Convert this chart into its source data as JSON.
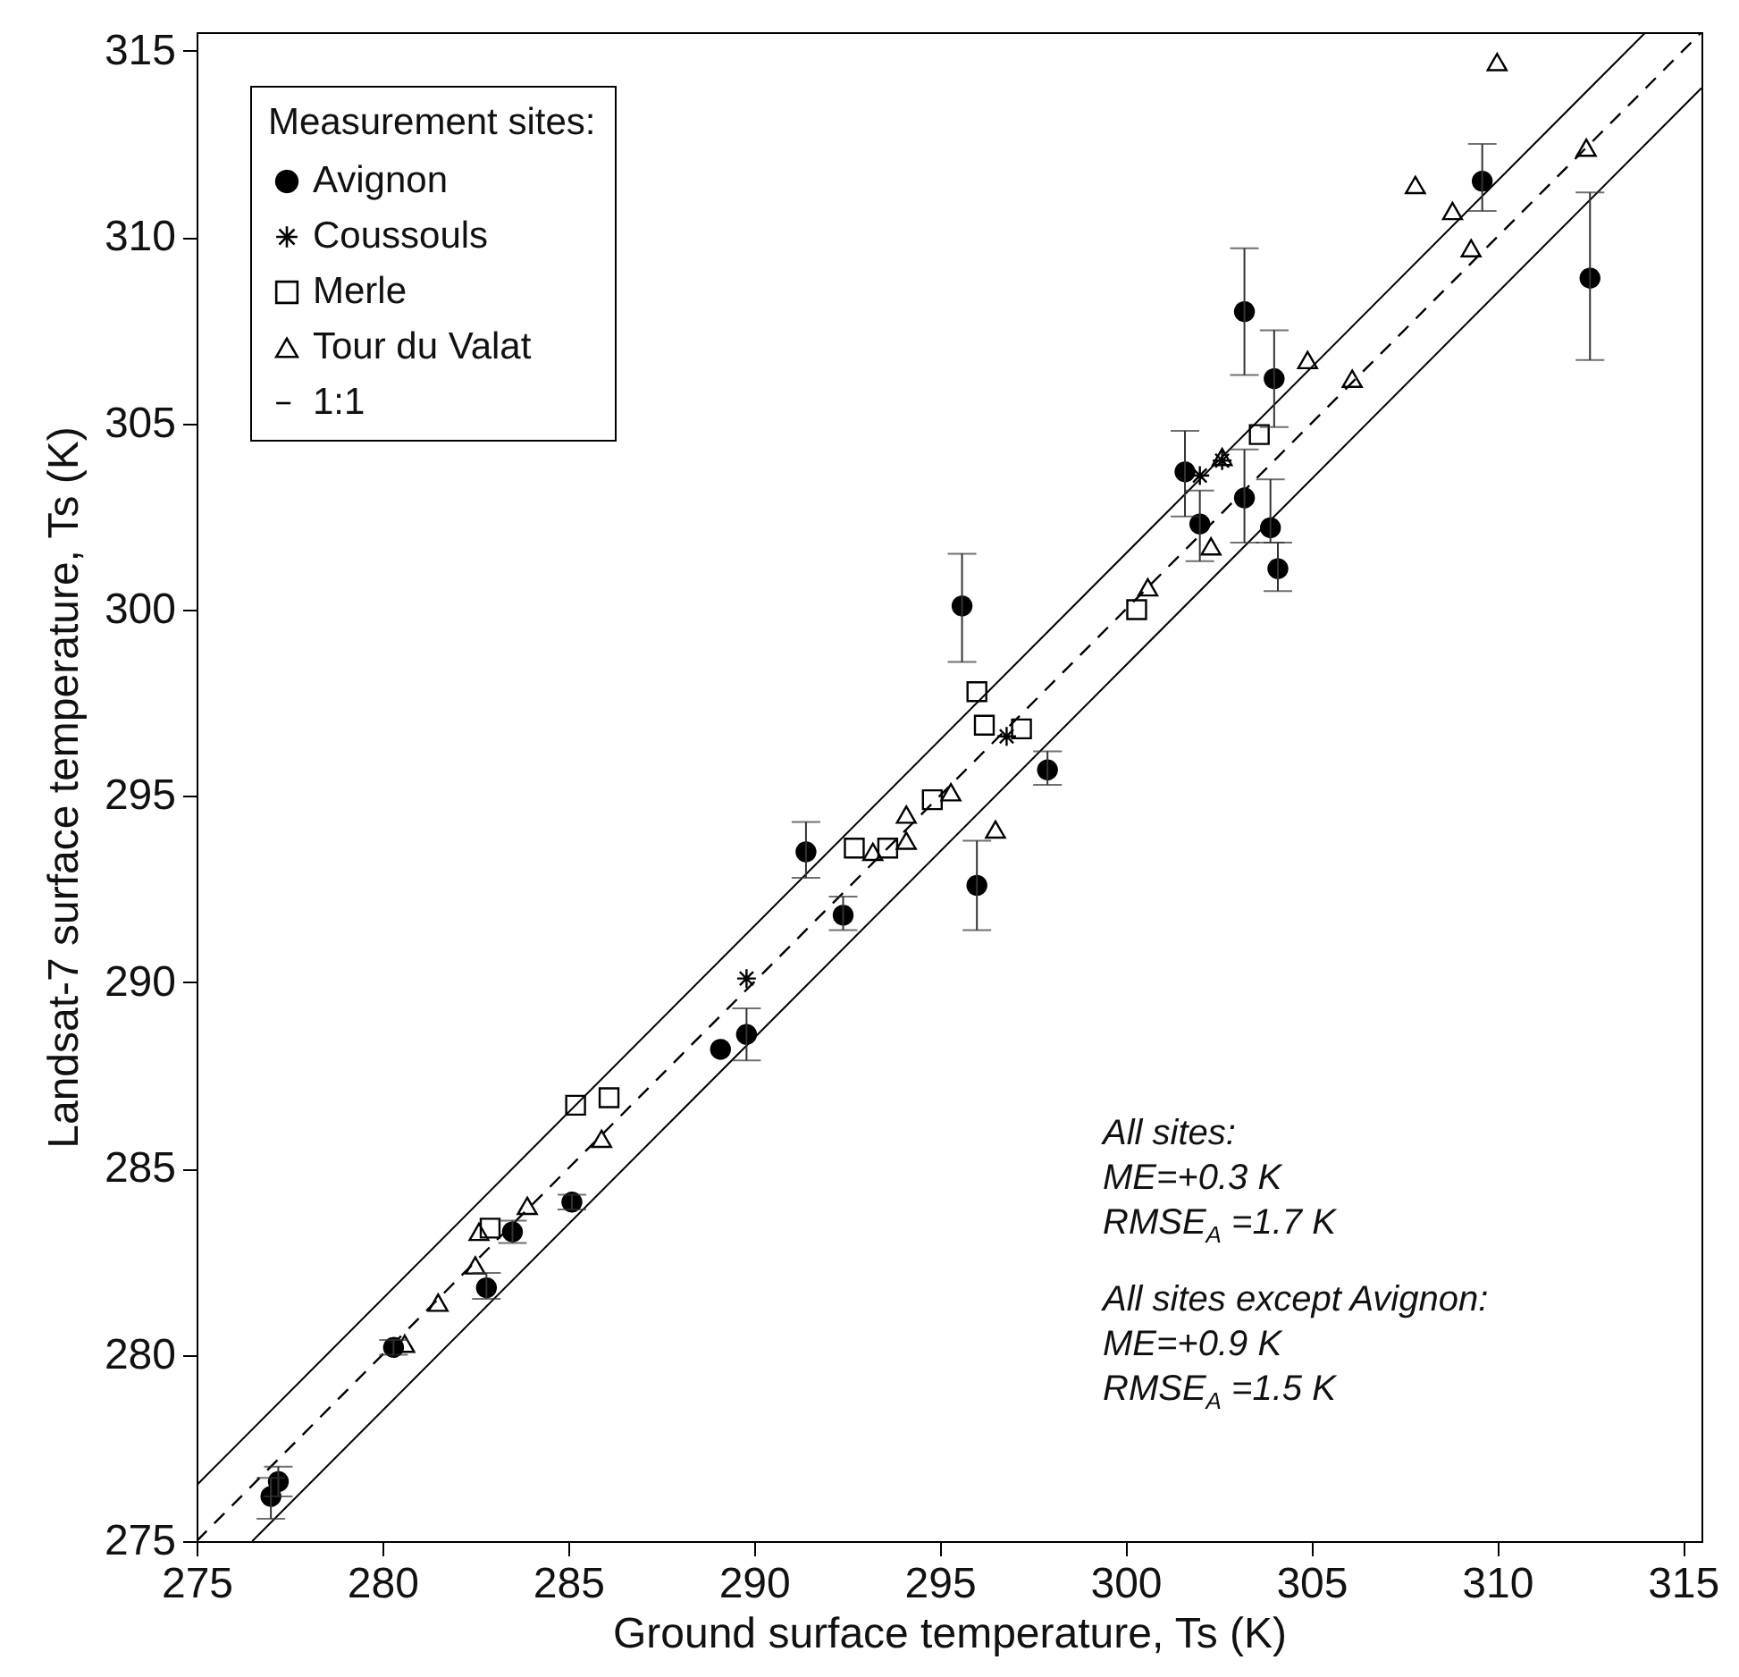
{
  "chart_data": {
    "type": "scatter",
    "xlabel": "Ground surface temperature, Ts (K)",
    "ylabel": "Landsat-7 surface temperature, Ts (K)",
    "legend_title": "Measurement sites:",
    "legend": "top left",
    "grid": false,
    "xlim": [
      275,
      315.5
    ],
    "ylim": [
      275,
      315.5
    ],
    "xticks": [
      275,
      280,
      285,
      290,
      295,
      300,
      305,
      310,
      315
    ],
    "yticks": [
      275,
      280,
      285,
      290,
      295,
      300,
      305,
      310,
      315
    ],
    "series": [
      {
        "name": "Avignon",
        "marker": "circle",
        "color": "#000000",
        "x": [
          277.2,
          277.0,
          280.3,
          282.8,
          283.5,
          285.1,
          289.1,
          289.8,
          291.4,
          292.4,
          295.6,
          296.0,
          297.9,
          301.6,
          302.0,
          303.2,
          303.2,
          304.0,
          303.9,
          304.1,
          309.6,
          312.5
        ],
        "values": [
          276.6,
          276.2,
          280.2,
          281.8,
          283.3,
          284.1,
          288.2,
          288.6,
          293.5,
          291.8,
          300.1,
          292.6,
          295.7,
          303.7,
          302.3,
          308.0,
          303.0,
          306.2,
          302.2,
          301.1,
          311.5,
          308.9
        ],
        "errors": [
          [
            276.2,
            277.0
          ],
          [
            275.6,
            276.7
          ],
          [
            280.0,
            280.4
          ],
          [
            281.5,
            282.2
          ],
          [
            283.0,
            283.6
          ],
          [
            283.9,
            284.3
          ],
          null,
          [
            287.9,
            289.3
          ],
          [
            292.8,
            294.3
          ],
          [
            291.4,
            292.3
          ],
          [
            298.6,
            301.5
          ],
          [
            291.4,
            293.8
          ],
          [
            295.3,
            296.2
          ],
          [
            302.5,
            304.8
          ],
          [
            301.3,
            303.2
          ],
          [
            306.3,
            309.7
          ],
          [
            301.8,
            304.3
          ],
          [
            304.9,
            307.5
          ],
          [
            301.8,
            303.5
          ],
          [
            300.5,
            301.8
          ],
          [
            310.7,
            312.5
          ],
          [
            306.7,
            311.2
          ]
        ]
      },
      {
        "name": "Coussouls",
        "marker": "cross",
        "color": "#000000",
        "x": [
          289.8,
          296.8,
          302.0,
          302.6
        ],
        "values": [
          290.1,
          296.6,
          303.6,
          304.0
        ]
      },
      {
        "name": "Merle",
        "marker": "square",
        "color": "#000000",
        "x": [
          282.9,
          285.2,
          286.1,
          292.7,
          293.6,
          294.8,
          296.0,
          296.2,
          297.2,
          300.3,
          303.6
        ],
        "values": [
          283.4,
          286.7,
          286.9,
          293.6,
          293.6,
          294.9,
          297.8,
          296.9,
          296.8,
          300.0,
          304.7
        ]
      },
      {
        "name": "Tour du Valat",
        "marker": "triangle",
        "color": "#000000",
        "x": [
          280.6,
          281.5,
          282.5,
          282.6,
          283.9,
          285.9,
          293.2,
          294.1,
          294.1,
          295.3,
          296.5,
          300.6,
          302.3,
          302.6,
          304.9,
          306.1,
          307.8,
          308.8,
          309.3,
          310.0,
          312.4
        ],
        "values": [
          280.3,
          281.4,
          282.4,
          283.3,
          284.0,
          285.8,
          293.5,
          293.8,
          294.5,
          295.1,
          294.1,
          300.6,
          301.7,
          304.1,
          306.7,
          306.2,
          311.4,
          310.7,
          309.7,
          314.7,
          312.4
        ]
      },
      {
        "name": "1:1",
        "type": "line",
        "line_style": "dashed",
        "color": "#000000",
        "x": [
          275,
          315.5
        ],
        "values": [
          275,
          315.5
        ]
      },
      {
        "type": "line",
        "line_style": "solid",
        "color": "#000000",
        "x": [
          275,
          314
        ],
        "values": [
          276.5,
          315.5
        ]
      },
      {
        "type": "line",
        "line_style": "solid",
        "color": "#000000",
        "x": [
          276.5,
          315.5
        ],
        "values": [
          275,
          314
        ]
      }
    ],
    "annotations": [
      "All sites:",
      "ME=+0.3 K",
      "RMSE$_{A}$ =1.7 K",
      "All sites except Avignon:",
      "ME=+0.9 K",
      "RMSE$_{A}$ =1.5 K"
    ]
  }
}
